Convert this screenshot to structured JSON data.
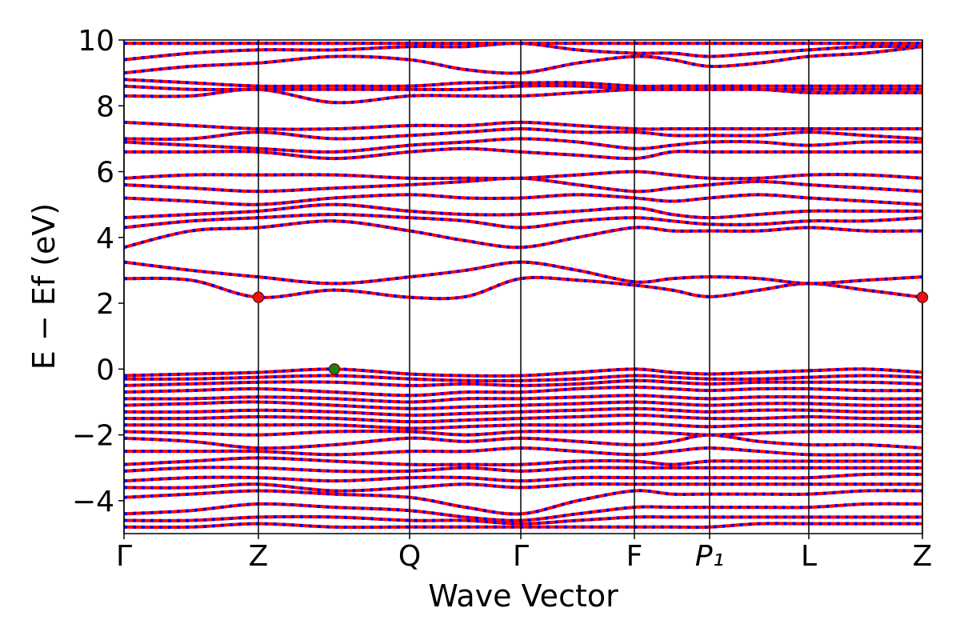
{
  "chart_data": {
    "type": "band",
    "xlabel": "Wave Vector",
    "ylabel": "E − Ef (eV)",
    "xlim": [
      0,
      0.998
    ],
    "ylim": [
      -5,
      10
    ],
    "yticks": [
      {
        "value": -4,
        "label": "−4"
      },
      {
        "value": -2,
        "label": "−2"
      },
      0,
      2,
      4,
      6,
      8,
      10
    ],
    "xticks": [
      {
        "value": 0,
        "label": "Γ"
      },
      {
        "value": 0.168,
        "label": "Z"
      },
      {
        "value": 0.357,
        "label": "Q"
      },
      {
        "value": 0.496,
        "label": "Γ"
      },
      {
        "value": 0.638,
        "label": "F"
      },
      {
        "value": 0.732,
        "label": "P₁"
      },
      {
        "value": 0.856,
        "label": "L"
      },
      {
        "value": 0.998,
        "label": "Z"
      }
    ],
    "color": "#ff0000",
    "dash_color": "#0000ff",
    "x": [
      0,
      0.084,
      0.168,
      0.263,
      0.357,
      0.427,
      0.496,
      0.567,
      0.638,
      0.685,
      0.732,
      0.794,
      0.856,
      0.927,
      0.998
    ],
    "series": [
      {
        "values": [
          2.75,
          2.7,
          2.18,
          2.4,
          2.18,
          2.2,
          2.75,
          2.7,
          2.55,
          2.4,
          2.2,
          2.4,
          2.6,
          2.4,
          2.18
        ]
      },
      {
        "values": [
          3.25,
          3.0,
          2.8,
          2.6,
          2.8,
          3.0,
          3.25,
          3.0,
          2.65,
          2.75,
          2.8,
          2.75,
          2.6,
          2.7,
          2.8
        ]
      },
      {
        "values": [
          3.7,
          4.2,
          4.3,
          4.5,
          4.2,
          3.9,
          3.7,
          4.0,
          4.3,
          4.2,
          4.2,
          4.2,
          4.3,
          4.2,
          4.2
        ]
      },
      {
        "values": [
          4.3,
          4.5,
          4.6,
          4.7,
          4.6,
          4.5,
          4.3,
          4.5,
          4.6,
          4.5,
          4.4,
          4.4,
          4.5,
          4.5,
          4.6
        ]
      },
      {
        "values": [
          4.6,
          4.7,
          4.8,
          5.0,
          4.8,
          4.7,
          4.7,
          4.8,
          4.9,
          4.7,
          4.6,
          4.7,
          4.8,
          4.8,
          4.8
        ]
      },
      {
        "values": [
          5.2,
          5.1,
          5.0,
          5.2,
          5.3,
          5.2,
          5.2,
          5.3,
          5.2,
          5.1,
          5.2,
          5.3,
          5.2,
          5.1,
          5.0
        ]
      },
      {
        "values": [
          5.6,
          5.5,
          5.4,
          5.5,
          5.6,
          5.7,
          5.8,
          5.6,
          5.4,
          5.5,
          5.6,
          5.7,
          5.6,
          5.5,
          5.4
        ]
      },
      {
        "values": [
          5.8,
          5.9,
          5.9,
          5.9,
          5.8,
          5.8,
          5.8,
          5.9,
          6.0,
          5.9,
          5.8,
          5.8,
          5.9,
          5.9,
          5.8
        ]
      },
      {
        "values": [
          6.6,
          6.6,
          6.6,
          6.4,
          6.6,
          6.7,
          6.6,
          6.5,
          6.4,
          6.6,
          6.6,
          6.6,
          6.6,
          6.6,
          6.6
        ]
      },
      {
        "values": [
          6.9,
          6.8,
          6.7,
          6.6,
          6.8,
          6.9,
          7.0,
          6.9,
          6.7,
          6.8,
          6.9,
          6.9,
          6.8,
          6.9,
          6.9
        ]
      },
      {
        "values": [
          7.0,
          7.0,
          7.2,
          7.0,
          7.1,
          7.2,
          7.3,
          7.2,
          7.2,
          7.1,
          7.1,
          7.1,
          7.2,
          7.1,
          7.0
        ]
      },
      {
        "values": [
          7.5,
          7.4,
          7.3,
          7.3,
          7.4,
          7.4,
          7.5,
          7.4,
          7.3,
          7.3,
          7.3,
          7.3,
          7.3,
          7.3,
          7.3
        ]
      },
      {
        "values": [
          8.3,
          8.3,
          8.5,
          8.1,
          8.3,
          8.3,
          8.3,
          8.4,
          8.5,
          8.5,
          8.5,
          8.5,
          8.4,
          8.4,
          8.4
        ]
      },
      {
        "values": [
          8.6,
          8.5,
          8.5,
          8.5,
          8.5,
          8.5,
          8.6,
          8.6,
          8.5,
          8.5,
          8.5,
          8.5,
          8.5,
          8.5,
          8.5
        ]
      },
      {
        "values": [
          8.8,
          8.7,
          8.6,
          8.6,
          8.6,
          8.7,
          8.7,
          8.7,
          8.6,
          8.6,
          8.6,
          8.6,
          8.6,
          8.6,
          8.6
        ]
      },
      {
        "values": [
          9.0,
          9.2,
          9.3,
          9.5,
          9.4,
          9.1,
          9.0,
          9.3,
          9.5,
          9.4,
          9.2,
          9.3,
          9.5,
          9.6,
          9.8
        ]
      },
      {
        "values": [
          9.4,
          9.6,
          9.7,
          9.7,
          9.8,
          9.8,
          9.9,
          9.7,
          9.6,
          9.6,
          9.5,
          9.6,
          9.7,
          9.8,
          9.8
        ]
      },
      {
        "values": [
          9.9,
          9.9,
          9.9,
          9.9,
          9.9,
          9.9,
          9.9,
          9.9,
          9.9,
          9.9,
          9.9,
          9.9,
          9.9,
          9.9,
          9.9
        ]
      },
      {
        "values": [
          -0.2,
          -0.15,
          -0.1,
          0.0,
          -0.15,
          -0.2,
          -0.2,
          -0.1,
          0.0,
          -0.1,
          -0.15,
          -0.1,
          -0.05,
          0.0,
          -0.1
        ]
      },
      {
        "values": [
          -0.3,
          -0.3,
          -0.25,
          -0.2,
          -0.3,
          -0.35,
          -0.35,
          -0.3,
          -0.2,
          -0.25,
          -0.3,
          -0.3,
          -0.25,
          -0.2,
          -0.25
        ]
      },
      {
        "values": [
          -0.5,
          -0.45,
          -0.4,
          -0.4,
          -0.5,
          -0.45,
          -0.5,
          -0.45,
          -0.35,
          -0.4,
          -0.45,
          -0.4,
          -0.4,
          -0.4,
          -0.45
        ]
      },
      {
        "values": [
          -0.7,
          -0.65,
          -0.6,
          -0.7,
          -0.8,
          -0.7,
          -0.7,
          -0.6,
          -0.55,
          -0.6,
          -0.65,
          -0.6,
          -0.6,
          -0.65,
          -0.65
        ]
      },
      {
        "values": [
          -0.9,
          -0.9,
          -0.85,
          -0.9,
          -1.0,
          -0.9,
          -0.9,
          -0.85,
          -0.8,
          -0.85,
          -0.9,
          -0.85,
          -0.85,
          -0.9,
          -0.9
        ]
      },
      {
        "values": [
          -1.1,
          -1.05,
          -1.0,
          -1.1,
          -1.2,
          -1.15,
          -1.1,
          -1.05,
          -1.0,
          -1.05,
          -1.1,
          -1.05,
          -1.05,
          -1.1,
          -1.1
        ]
      },
      {
        "values": [
          -1.3,
          -1.3,
          -1.25,
          -1.3,
          -1.4,
          -1.35,
          -1.3,
          -1.25,
          -1.2,
          -1.25,
          -1.3,
          -1.25,
          -1.25,
          -1.3,
          -1.3
        ]
      },
      {
        "values": [
          -1.5,
          -1.5,
          -1.45,
          -1.5,
          -1.6,
          -1.55,
          -1.5,
          -1.45,
          -1.4,
          -1.45,
          -1.5,
          -1.5,
          -1.45,
          -1.5,
          -1.5
        ]
      },
      {
        "values": [
          -1.7,
          -1.7,
          -1.7,
          -1.7,
          -1.8,
          -1.75,
          -1.7,
          -1.7,
          -1.65,
          -1.7,
          -1.75,
          -1.7,
          -1.7,
          -1.7,
          -1.75
        ]
      },
      {
        "values": [
          -1.9,
          -1.95,
          -2.0,
          -1.9,
          -1.9,
          -2.0,
          -1.9,
          -1.9,
          -1.9,
          -1.95,
          -2.0,
          -1.95,
          -1.9,
          -1.9,
          -1.9
        ]
      },
      {
        "values": [
          -2.1,
          -2.2,
          -2.4,
          -2.3,
          -2.1,
          -2.2,
          -2.1,
          -2.2,
          -2.3,
          -2.2,
          -2.0,
          -2.2,
          -2.3,
          -2.3,
          -2.4
        ]
      },
      {
        "values": [
          -2.5,
          -2.5,
          -2.5,
          -2.6,
          -2.5,
          -2.5,
          -2.4,
          -2.5,
          -2.6,
          -2.5,
          -2.4,
          -2.5,
          -2.6,
          -2.6,
          -2.6
        ]
      },
      {
        "values": [
          -2.9,
          -2.8,
          -2.7,
          -2.8,
          -2.9,
          -2.9,
          -2.9,
          -2.8,
          -2.8,
          -2.9,
          -2.8,
          -2.8,
          -2.8,
          -2.8,
          -2.8
        ]
      },
      {
        "values": [
          -3.1,
          -3.0,
          -3.0,
          -3.1,
          -3.1,
          -3.0,
          -3.1,
          -3.0,
          -3.0,
          -3.0,
          -3.0,
          -3.0,
          -3.0,
          -3.0,
          -3.0
        ]
      },
      {
        "values": [
          -3.4,
          -3.3,
          -3.3,
          -3.4,
          -3.3,
          -3.3,
          -3.4,
          -3.3,
          -3.3,
          -3.3,
          -3.3,
          -3.3,
          -3.3,
          -3.2,
          -3.2
        ]
      },
      {
        "values": [
          -3.6,
          -3.6,
          -3.5,
          -3.7,
          -3.6,
          -3.5,
          -3.6,
          -3.5,
          -3.5,
          -3.5,
          -3.5,
          -3.5,
          -3.5,
          -3.5,
          -3.5
        ]
      },
      {
        "values": [
          -3.9,
          -3.8,
          -3.7,
          -3.8,
          -3.9,
          -4.2,
          -4.4,
          -4.0,
          -3.7,
          -3.8,
          -3.8,
          -3.8,
          -3.8,
          -3.7,
          -3.7
        ]
      },
      {
        "values": [
          -4.4,
          -4.3,
          -4.1,
          -4.2,
          -4.3,
          -4.5,
          -4.6,
          -4.4,
          -4.2,
          -4.2,
          -4.2,
          -4.2,
          -4.2,
          -4.1,
          -4.1
        ]
      },
      {
        "values": [
          -4.6,
          -4.6,
          -4.5,
          -4.5,
          -4.6,
          -4.6,
          -4.7,
          -4.6,
          -4.5,
          -4.5,
          -4.5,
          -4.5,
          -4.5,
          -4.5,
          -4.5
        ]
      },
      {
        "values": [
          -4.8,
          -4.8,
          -4.7,
          -4.8,
          -4.8,
          -4.8,
          -4.8,
          -4.8,
          -4.8,
          -4.8,
          -4.8,
          -4.7,
          -4.7,
          -4.7,
          -4.7
        ]
      }
    ],
    "points": [
      {
        "x": 0.168,
        "y": 2.18,
        "color": "#ee1111"
      },
      {
        "x": 0.998,
        "y": 2.18,
        "color": "#ee1111"
      },
      {
        "x": 0.263,
        "y": 0.0,
        "color": "#118811"
      }
    ]
  }
}
